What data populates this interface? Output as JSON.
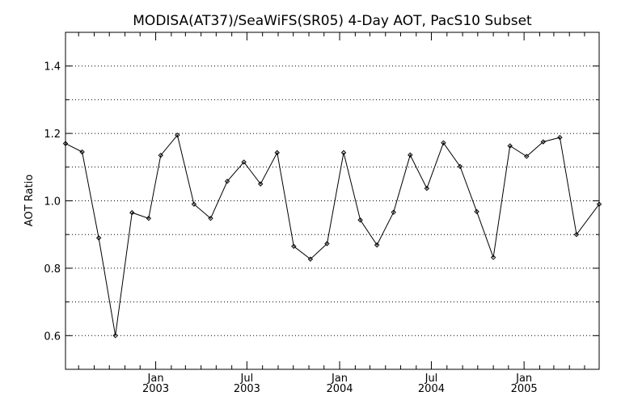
{
  "chart_data": {
    "type": "line",
    "title": "MODISA(AT37)/SeaWiFS(SR05) 4-Day AOT, PacS10 Subset",
    "xlabel": "",
    "ylabel": "AOT Ratio",
    "ylim": [
      0.5,
      1.5
    ],
    "xlim": [
      "2002-07-06",
      "2005-05-30"
    ],
    "y_ticks": [
      0.6,
      0.8,
      1.0,
      1.2,
      1.4
    ],
    "y_tick_labels": [
      "0.6",
      "0.8",
      "1.0",
      "1.2",
      "1.4"
    ],
    "y_minor_ticks": [
      0.5,
      0.7,
      0.9,
      1.1,
      1.3,
      1.5
    ],
    "x_major_ticks": [
      {
        "date": "2003-01-01",
        "month": "Jan",
        "year": "2003"
      },
      {
        "date": "2003-07-01",
        "month": "Jul",
        "year": "2003"
      },
      {
        "date": "2004-01-01",
        "month": "Jan",
        "year": "2004"
      },
      {
        "date": "2004-07-01",
        "month": "Jul",
        "year": "2004"
      },
      {
        "date": "2005-01-01",
        "month": "Jan",
        "year": "2005"
      }
    ],
    "x_minor_ticks": [
      "2002-08-01",
      "2002-09-01",
      "2002-10-01",
      "2002-11-01",
      "2002-12-01",
      "2003-02-01",
      "2003-03-01",
      "2003-04-01",
      "2003-05-01",
      "2003-06-01",
      "2003-08-01",
      "2003-09-01",
      "2003-10-01",
      "2003-11-01",
      "2003-12-01",
      "2004-02-01",
      "2004-03-01",
      "2004-04-01",
      "2004-05-01",
      "2004-06-01",
      "2004-08-01",
      "2004-09-01",
      "2004-10-01",
      "2004-11-01",
      "2004-12-01",
      "2005-02-01",
      "2005-03-01",
      "2005-04-01",
      "2005-05-01"
    ],
    "grid": "horizontal-dotted",
    "marker": "diamond",
    "line_color": "#000000",
    "series": [
      {
        "x": [
          "2002-07-06",
          "2002-08-08",
          "2002-09-10",
          "2002-10-13",
          "2002-11-15",
          "2002-12-18",
          "2003-01-11",
          "2003-02-13",
          "2003-03-18",
          "2003-04-20",
          "2003-05-23",
          "2003-06-25",
          "2003-07-28",
          "2003-08-30",
          "2003-10-02",
          "2003-11-04",
          "2003-12-07",
          "2004-01-09",
          "2004-02-11",
          "2004-03-15",
          "2004-04-17",
          "2004-05-20",
          "2004-06-22",
          "2004-07-25",
          "2004-08-27",
          "2004-09-29",
          "2004-11-01",
          "2004-12-04",
          "2005-01-06",
          "2005-02-08",
          "2005-03-13",
          "2005-04-15",
          "2005-05-30"
        ],
        "y": [
          1.17,
          1.145,
          0.89,
          0.6,
          0.965,
          0.948,
          1.135,
          1.195,
          0.99,
          0.948,
          1.058,
          1.115,
          1.05,
          1.143,
          0.865,
          0.827,
          0.873,
          1.143,
          0.943,
          0.869,
          0.966,
          1.136,
          1.037,
          1.172,
          1.102,
          0.968,
          0.832,
          1.163,
          1.132,
          1.175,
          1.188,
          0.9,
          0.99
        ]
      }
    ]
  }
}
